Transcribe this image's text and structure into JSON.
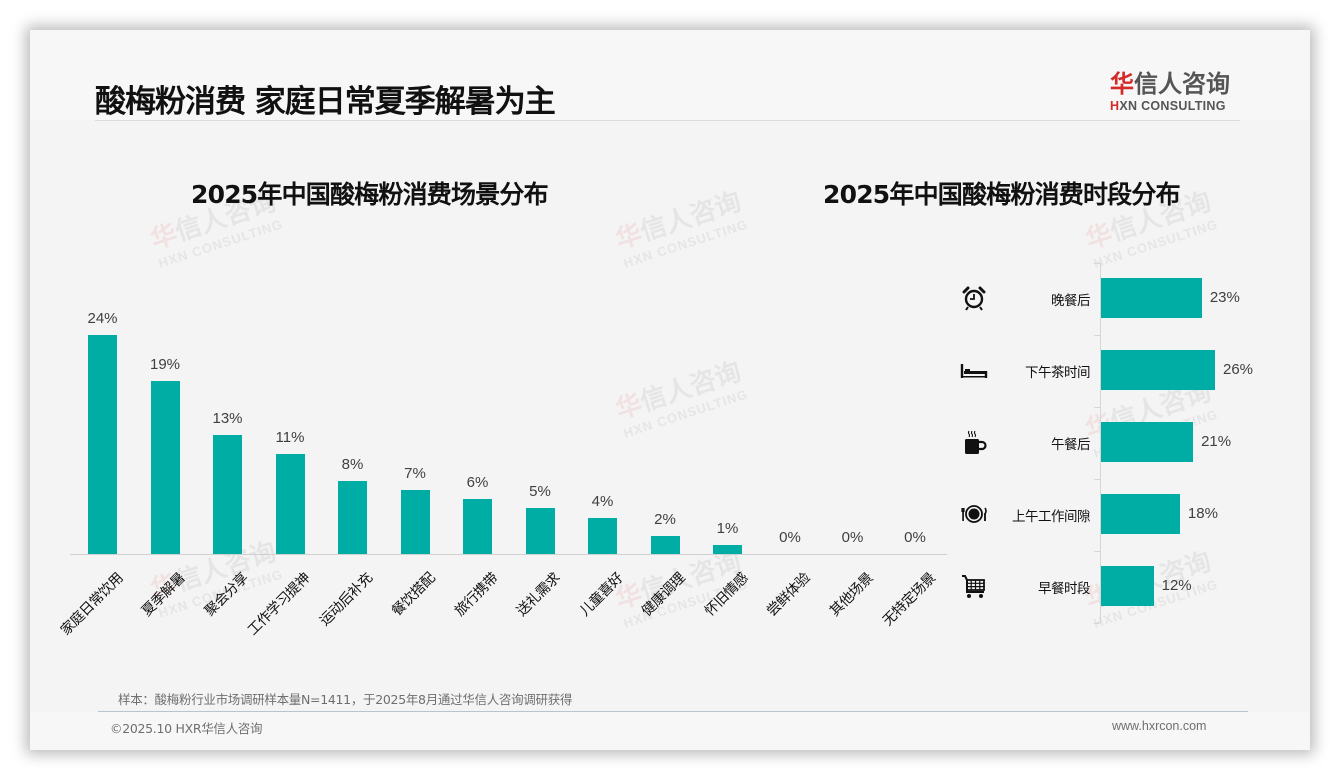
{
  "page": {
    "title": "酸梅粉消费 家庭日常夏季解暑为主",
    "logo": {
      "cn_red": "华",
      "cn_rest": "信人咨询",
      "en_red": "H",
      "en_rest": "XN CONSULTING"
    },
    "watermark": {
      "cn_red": "华",
      "cn_rest": "信人咨询",
      "en": "HXN CONSULTING"
    },
    "note": "样本：酸梅粉行业市场调研样本量N=1411，于2025年8月通过华信人咨询调研获得",
    "copyright": "©2025.10 HXR华信人咨询",
    "website": "www.hxrcon.com",
    "accent_color": "#00ada5",
    "logo_red": "#d42a2a"
  },
  "chart_data": [
    {
      "type": "bar",
      "title": "2025年中国酸梅粉消费场景分布",
      "xlabel": "",
      "ylabel": "",
      "orientation": "vertical",
      "categories": [
        "家庭日常饮用",
        "夏季解暑",
        "聚会分享",
        "工作学习提神",
        "运动后补充",
        "餐饮搭配",
        "旅行携带",
        "送礼需求",
        "儿童喜好",
        "健康调理",
        "怀旧情感",
        "尝鲜体验",
        "其他场景",
        "无特定场景"
      ],
      "values": [
        24,
        19,
        13,
        11,
        8,
        7,
        6,
        5,
        4,
        2,
        1,
        0,
        0,
        0
      ],
      "labels": [
        "24%",
        "19%",
        "13%",
        "11%",
        "8%",
        "7%",
        "6%",
        "5%",
        "4%",
        "2%",
        "1%",
        "0%",
        "0%",
        "0%"
      ],
      "unit": "%",
      "ylim": [
        0,
        25
      ],
      "grid": false,
      "legend": null,
      "color": "#00ada5"
    },
    {
      "type": "bar",
      "title": "2025年中国酸梅粉消费时段分布",
      "xlabel": "",
      "ylabel": "",
      "orientation": "horizontal",
      "categories": [
        "晚餐后",
        "下午茶时间",
        "午餐后",
        "上午工作间隙",
        "早餐时段"
      ],
      "values": [
        23,
        26,
        21,
        18,
        12
      ],
      "labels": [
        "23%",
        "26%",
        "21%",
        "18%",
        "12%"
      ],
      "icons": [
        "alarm-clock-icon",
        "bed-icon",
        "coffee-mug-icon",
        "plate-cutlery-icon",
        "shopping-cart-icon"
      ],
      "unit": "%",
      "xlim": [
        0,
        30
      ],
      "grid": false,
      "legend": null,
      "color": "#00ada5"
    }
  ]
}
